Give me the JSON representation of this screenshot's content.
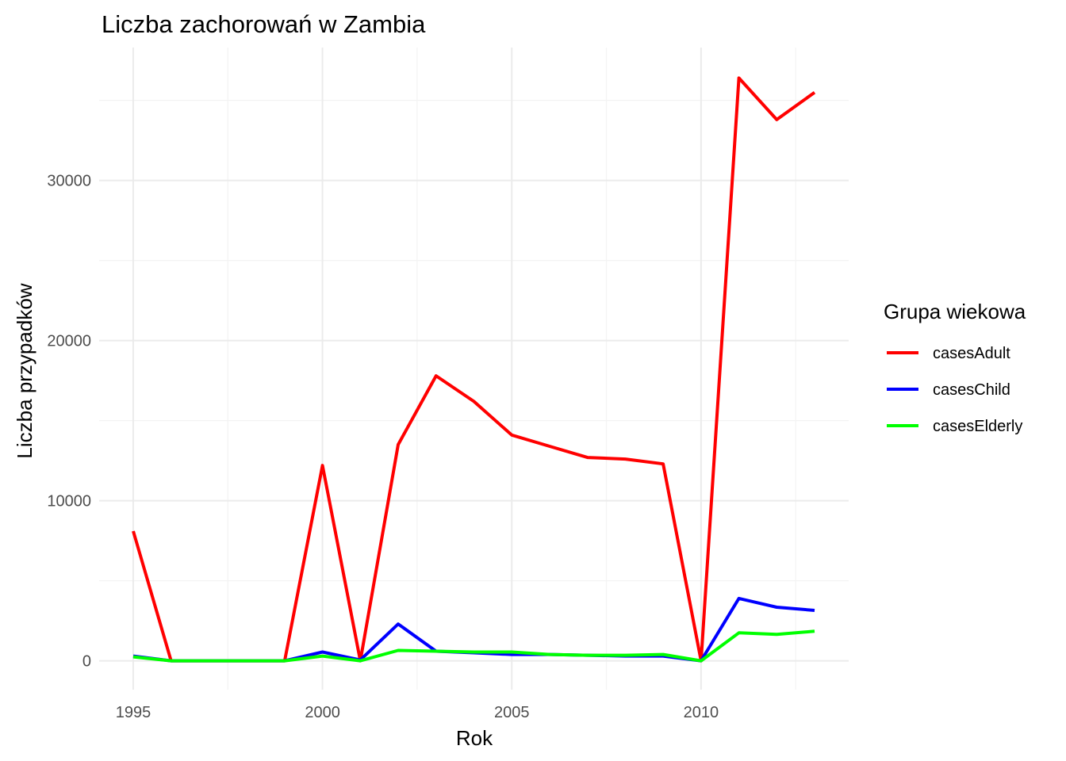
{
  "chart_data": {
    "type": "line",
    "title": "Liczba zachorowań w Zambia",
    "xlabel": "Rok",
    "ylabel": "Liczba przypadków",
    "x": [
      1995,
      1996,
      1997,
      1998,
      1999,
      2000,
      2001,
      2002,
      2003,
      2004,
      2005,
      2006,
      2007,
      2008,
      2009,
      2010,
      2011,
      2012,
      2013
    ],
    "xlim": [
      1994.1,
      2013.9
    ],
    "ylim": [
      -1800,
      38300
    ],
    "x_ticks": [
      1995,
      2000,
      2005,
      2010
    ],
    "y_ticks": [
      0,
      10000,
      20000,
      30000
    ],
    "x_tick_labels": [
      "1995",
      "2000",
      "2005",
      "2010"
    ],
    "y_tick_labels": [
      "0",
      "10000",
      "20000",
      "30000"
    ],
    "grid": true,
    "legend": {
      "title": "Grupa wiekowa",
      "position": "right"
    },
    "series": [
      {
        "name": "casesAdult",
        "color": "#ff0000",
        "values": [
          8100,
          0,
          0,
          0,
          0,
          12200,
          0,
          13500,
          17800,
          16200,
          14100,
          13400,
          12700,
          12600,
          12300,
          0,
          36400,
          33800,
          35500
        ]
      },
      {
        "name": "casesChild",
        "color": "#0000ff",
        "values": [
          300,
          0,
          0,
          0,
          0,
          550,
          50,
          2300,
          600,
          500,
          400,
          400,
          350,
          300,
          300,
          0,
          3900,
          3350,
          3150
        ]
      },
      {
        "name": "casesElderly",
        "color": "#00ff00",
        "values": [
          250,
          0,
          0,
          0,
          0,
          300,
          0,
          650,
          600,
          550,
          550,
          400,
          350,
          350,
          400,
          0,
          1750,
          1650,
          1850
        ]
      }
    ]
  }
}
